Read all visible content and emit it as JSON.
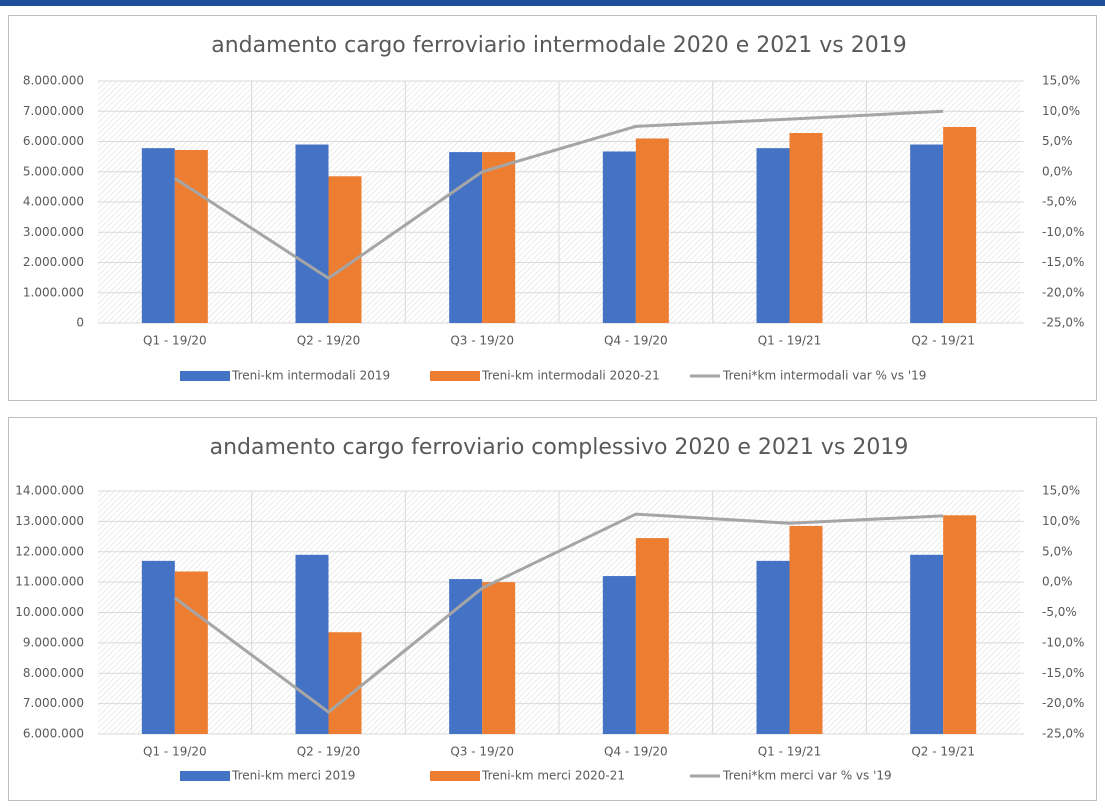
{
  "chart_data": [
    {
      "type": "bar",
      "title": "andamento cargo ferroviario intermodale 2020 e 2021 vs 2019",
      "categories": [
        "Q1 - 19/20",
        "Q2 - 19/20",
        "Q3 - 19/20",
        "Q4 - 19/20",
        "Q1 - 19/21",
        "Q2 - 19/21"
      ],
      "series": [
        {
          "name": "Treni-km intermodali 2019",
          "color": "#4472c4",
          "values": [
            5780000,
            5900000,
            5650000,
            5670000,
            5780000,
            5900000
          ]
        },
        {
          "name": "Treni-km intermodali 2020-21",
          "color": "#ed7d31",
          "values": [
            5720000,
            4850000,
            5650000,
            6100000,
            6280000,
            6480000
          ]
        },
        {
          "name": "Treni*km intermodali var % vs '19",
          "color": "#a5a5a5",
          "type": "line",
          "axis": "y2",
          "values": [
            -1.1,
            -17.6,
            0,
            7.5,
            8.7,
            10
          ]
        }
      ],
      "ylim": [
        0,
        8000000
      ],
      "yticks": [
        0,
        {
          "value": 1000000,
          "label": "1.000.000"
        },
        {
          "value": 2000000,
          "label": "2.000.000"
        },
        {
          "value": 3000000,
          "label": "3.000.000"
        },
        {
          "value": 4000000,
          "label": "4.000.000"
        },
        {
          "value": 5000000,
          "label": "5.000.000"
        },
        {
          "value": 6000000,
          "label": "6.000.000"
        },
        {
          "value": 7000000,
          "label": "7.000.000"
        },
        {
          "value": 8000000,
          "label": "8.000.000"
        }
      ],
      "y2lim": [
        -25,
        15
      ],
      "y2ticks": [
        {
          "value": -25,
          "label": "-25,0%"
        },
        {
          "value": -20,
          "label": "-20,0%"
        },
        {
          "value": -15,
          "label": "-15,0%"
        },
        {
          "value": -10,
          "label": "-10,0%"
        },
        {
          "value": -5,
          "label": "-5,0%"
        },
        {
          "value": 0,
          "label": "0,0%"
        },
        {
          "value": 5,
          "label": "5,0%"
        },
        {
          "value": 10,
          "label": "10,0%"
        },
        {
          "value": 15,
          "label": "15,0%"
        }
      ],
      "grid": true,
      "legend": "bottom"
    },
    {
      "type": "bar",
      "title": "andamento cargo ferroviario complessivo 2020 e 2021 vs 2019",
      "categories": [
        "Q1 - 19/20",
        "Q2 - 19/20",
        "Q3 - 19/20",
        "Q4 - 19/20",
        "Q1 - 19/21",
        "Q2 - 19/21"
      ],
      "series": [
        {
          "name": "Treni-km merci 2019",
          "color": "#4472c4",
          "values": [
            11700000,
            11900000,
            11100000,
            11200000,
            11700000,
            11900000
          ]
        },
        {
          "name": "Treni-km merci 2020-21",
          "color": "#ed7d31",
          "values": [
            11350000,
            9350000,
            11000000,
            12450000,
            12850000,
            13200000
          ]
        },
        {
          "name": "Treni*km merci var % vs '19",
          "color": "#a5a5a5",
          "type": "line",
          "axis": "y2",
          "values": [
            -2.6,
            -21.4,
            -1,
            11.2,
            9.7,
            10.9
          ]
        }
      ],
      "ylim": [
        6000000,
        14000000
      ],
      "yticks": [
        {
          "value": 6000000,
          "label": "6.000.000"
        },
        {
          "value": 7000000,
          "label": "7.000.000"
        },
        {
          "value": 8000000,
          "label": "8.000.000"
        },
        {
          "value": 9000000,
          "label": "9.000.000"
        },
        {
          "value": 10000000,
          "label": "10.000.000"
        },
        {
          "value": 11000000,
          "label": "11.000.000"
        },
        {
          "value": 12000000,
          "label": "12.000.000"
        },
        {
          "value": 13000000,
          "label": "13.000.000"
        },
        {
          "value": 14000000,
          "label": "14.000.000"
        }
      ],
      "y2lim": [
        -25,
        15
      ],
      "y2ticks": [
        {
          "value": -25,
          "label": "-25,0%"
        },
        {
          "value": -20,
          "label": "-20,0%"
        },
        {
          "value": -15,
          "label": "-15,0%"
        },
        {
          "value": -10,
          "label": "-10,0%"
        },
        {
          "value": -5,
          "label": "-5,0%"
        },
        {
          "value": 0,
          "label": "0,0%"
        },
        {
          "value": 5,
          "label": "5,0%"
        },
        {
          "value": 10,
          "label": "10,0%"
        },
        {
          "value": 15,
          "label": "15,0%"
        }
      ],
      "grid": true,
      "legend": "bottom"
    }
  ]
}
